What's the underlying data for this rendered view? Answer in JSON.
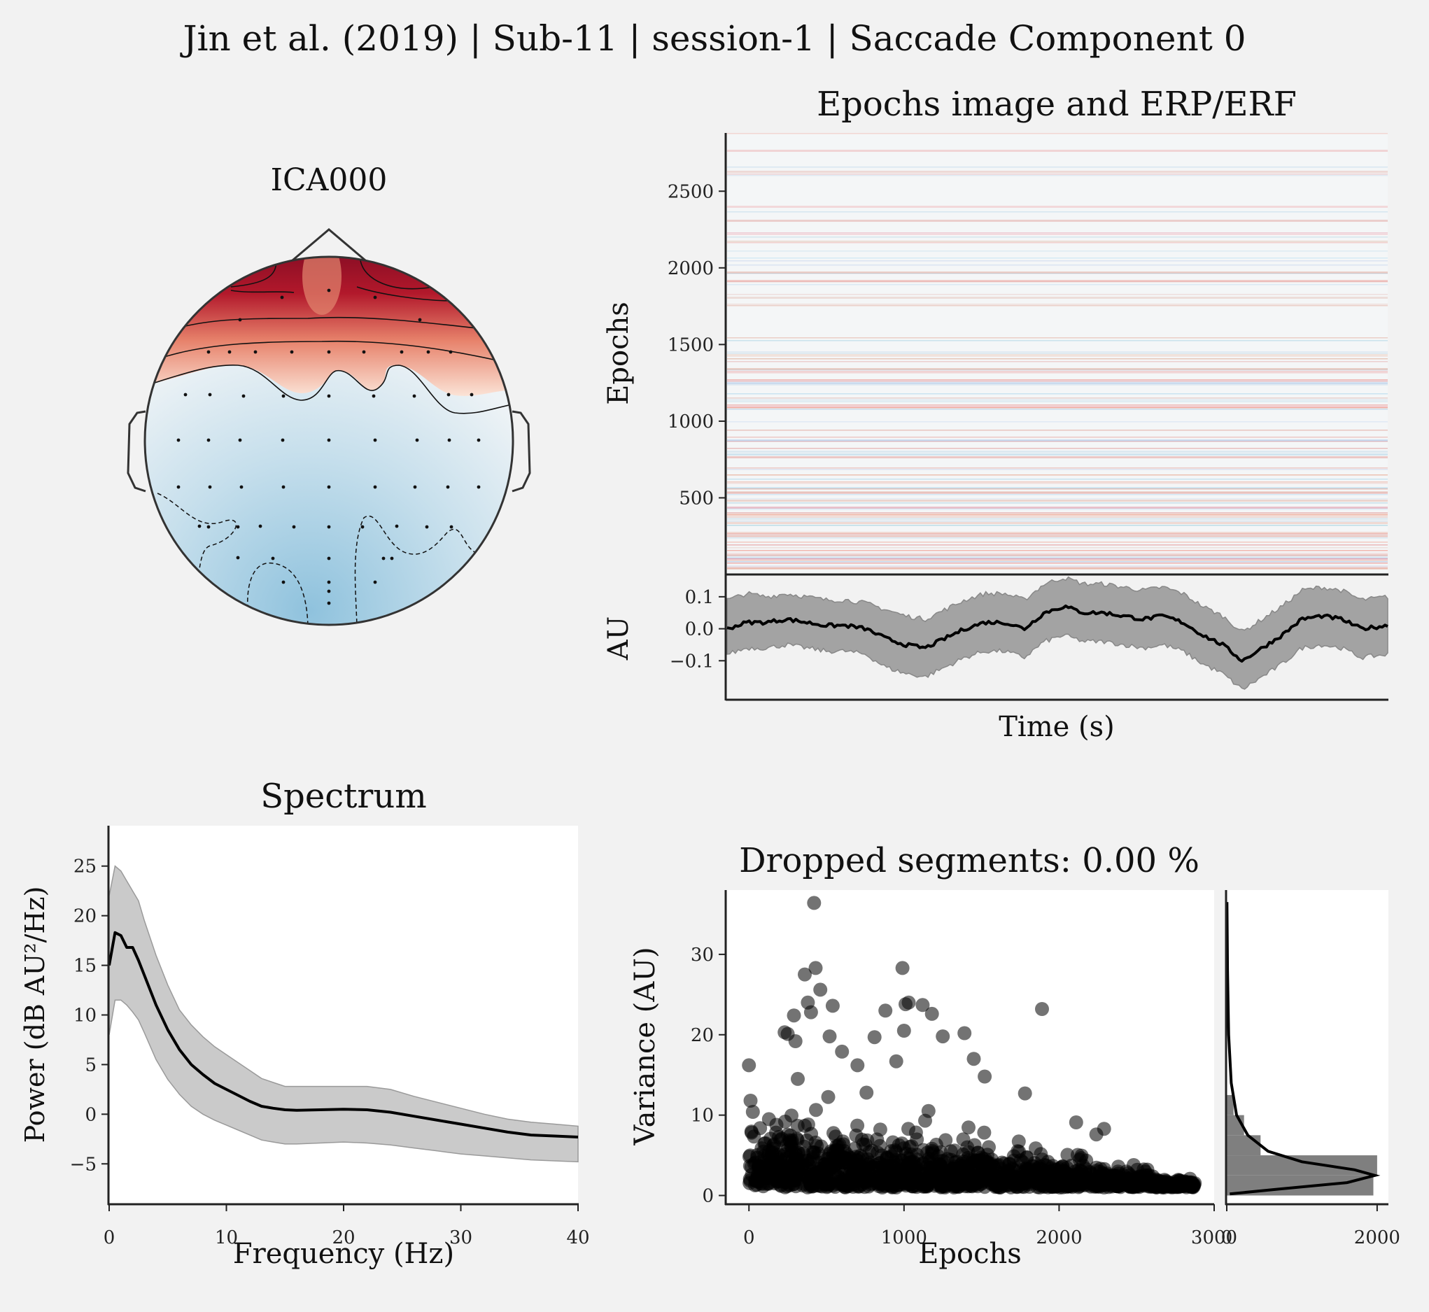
{
  "figure": {
    "suptitle": "Jin et al. (2019) | Sub-11 | session-1 | Saccade Component 0",
    "background": "#f2f2f2"
  },
  "topomap": {
    "title": "ICA000",
    "colormap": "RdBu_r",
    "colors": {
      "positive": "#67001f",
      "neutral": "#f7f7f7",
      "negative": "#4393c3"
    }
  },
  "chart_data": [
    {
      "id": "epochs_image",
      "type": "heatmap",
      "title": "Epochs image and ERP/ERF",
      "ylabel": "Epochs",
      "yticks": [
        500,
        1000,
        1500,
        2000,
        2500
      ],
      "ylim": [
        0,
        2880
      ],
      "colormap": "RdBu_r"
    },
    {
      "id": "erp",
      "type": "area",
      "xlabel": "Time (s)",
      "ylabel": "AU",
      "yticks": [
        0.1,
        0.0,
        -0.1
      ],
      "ytick_labels": [
        "0.1",
        "0.0",
        "−0.1"
      ],
      "ylim": [
        -0.2,
        0.15
      ],
      "xlim": [
        0,
        1
      ],
      "series": [
        {
          "x": [
            0.0,
            0.03,
            0.06,
            0.09,
            0.12,
            0.15,
            0.18,
            0.21,
            0.24,
            0.27,
            0.3,
            0.33,
            0.36,
            0.39,
            0.42,
            0.45,
            0.48,
            0.51,
            0.54,
            0.57,
            0.6,
            0.63,
            0.66,
            0.69,
            0.72,
            0.75,
            0.78,
            0.81,
            0.84,
            0.87,
            0.9,
            0.93,
            0.96,
            1.0
          ],
          "mean": [
            0.0,
            0.02,
            0.02,
            0.03,
            0.02,
            0.01,
            0.01,
            0.0,
            -0.03,
            -0.05,
            -0.06,
            -0.03,
            0.0,
            0.02,
            0.02,
            0.0,
            0.05,
            0.07,
            0.05,
            0.05,
            0.04,
            0.03,
            0.04,
            0.02,
            -0.02,
            -0.05,
            -0.1,
            -0.06,
            -0.02,
            0.03,
            0.04,
            0.03,
            0.0,
            0.01
          ],
          "lower": [
            -0.08,
            -0.06,
            -0.06,
            -0.05,
            -0.06,
            -0.07,
            -0.07,
            -0.08,
            -0.12,
            -0.14,
            -0.15,
            -0.12,
            -0.09,
            -0.07,
            -0.07,
            -0.09,
            -0.04,
            -0.02,
            -0.04,
            -0.04,
            -0.05,
            -0.06,
            -0.05,
            -0.07,
            -0.11,
            -0.14,
            -0.19,
            -0.15,
            -0.11,
            -0.06,
            -0.05,
            -0.06,
            -0.09,
            -0.08
          ],
          "upper": [
            0.09,
            0.11,
            0.1,
            0.11,
            0.1,
            0.09,
            0.09,
            0.08,
            0.06,
            0.04,
            0.03,
            0.06,
            0.09,
            0.11,
            0.11,
            0.09,
            0.14,
            0.16,
            0.14,
            0.14,
            0.13,
            0.12,
            0.13,
            0.11,
            0.07,
            0.04,
            -0.01,
            0.03,
            0.07,
            0.12,
            0.13,
            0.12,
            0.09,
            0.1
          ]
        }
      ]
    },
    {
      "id": "spectrum",
      "type": "line",
      "title": "Spectrum",
      "xlabel": "Frequency (Hz)",
      "ylabel": "Power (dB AU²/Hz)",
      "xlim": [
        0,
        40
      ],
      "ylim": [
        -9,
        29
      ],
      "xticks": [
        0,
        10,
        20,
        30,
        40
      ],
      "yticks": [
        -5,
        0,
        5,
        10,
        15,
        20,
        25
      ],
      "ytick_labels": [
        "−5",
        "0",
        "5",
        "10",
        "15",
        "20",
        "25"
      ],
      "series": [
        {
          "x": [
            0,
            0.5,
            1,
            1.5,
            2,
            2.5,
            3,
            4,
            5,
            6,
            7,
            8,
            9,
            10,
            11,
            12,
            13,
            14,
            15,
            16,
            18,
            20,
            22,
            24,
            26,
            28,
            30,
            32,
            34,
            36,
            38,
            40
          ],
          "mean": [
            15.0,
            18.3,
            18.0,
            16.8,
            16.8,
            15.5,
            14.0,
            11.0,
            8.5,
            6.5,
            5.0,
            4.0,
            3.1,
            2.5,
            1.9,
            1.3,
            0.8,
            0.6,
            0.45,
            0.4,
            0.45,
            0.5,
            0.45,
            0.2,
            -0.2,
            -0.6,
            -1.0,
            -1.4,
            -1.8,
            -2.1,
            -2.2,
            -2.3
          ],
          "lower": [
            8.0,
            11.5,
            11.5,
            11.0,
            10.3,
            9.5,
            8.2,
            5.5,
            3.5,
            2.0,
            0.8,
            0.0,
            -0.6,
            -1.1,
            -1.6,
            -2.1,
            -2.6,
            -2.8,
            -3.0,
            -3.0,
            -2.9,
            -2.8,
            -2.9,
            -3.1,
            -3.4,
            -3.7,
            -4.0,
            -4.2,
            -4.4,
            -4.6,
            -4.7,
            -4.8
          ],
          "upper": [
            22.0,
            25.0,
            24.5,
            23.5,
            22.5,
            21.5,
            19.5,
            16.0,
            13.0,
            10.5,
            9.0,
            7.8,
            6.8,
            6.0,
            5.2,
            4.4,
            3.6,
            3.2,
            2.8,
            2.8,
            2.8,
            2.8,
            2.8,
            2.5,
            1.8,
            1.2,
            0.6,
            0.0,
            -0.5,
            -0.8,
            -1.0,
            -1.2
          ]
        }
      ]
    },
    {
      "id": "dropped_variance",
      "type": "scatter",
      "title": "Dropped segments: 0.00 %",
      "xlabel": "Epochs",
      "ylabel": "Variance (AU)",
      "xlim": [
        -150,
        3000
      ],
      "ylim": [
        -1,
        38
      ],
      "xticks": [
        0,
        1000,
        2000,
        3000
      ],
      "xtick_labels": [
        "0",
        "1000",
        "2000",
        "3000"
      ],
      "yticks": [
        0,
        10,
        20,
        30
      ],
      "outliers": [
        {
          "x": 0,
          "y": 16.2
        },
        {
          "x": 10,
          "y": 11.8
        },
        {
          "x": 25,
          "y": 10.4
        },
        {
          "x": 230,
          "y": 20.3
        },
        {
          "x": 250,
          "y": 20.1
        },
        {
          "x": 290,
          "y": 22.4
        },
        {
          "x": 300,
          "y": 19.2
        },
        {
          "x": 315,
          "y": 14.5
        },
        {
          "x": 360,
          "y": 27.5
        },
        {
          "x": 380,
          "y": 24.0
        },
        {
          "x": 400,
          "y": 22.8
        },
        {
          "x": 420,
          "y": 36.4
        },
        {
          "x": 430,
          "y": 28.3
        },
        {
          "x": 460,
          "y": 25.6
        },
        {
          "x": 540,
          "y": 23.6
        },
        {
          "x": 520,
          "y": 19.8
        },
        {
          "x": 600,
          "y": 17.9
        },
        {
          "x": 700,
          "y": 16.2
        },
        {
          "x": 810,
          "y": 19.7
        },
        {
          "x": 880,
          "y": 23.0
        },
        {
          "x": 950,
          "y": 16.7
        },
        {
          "x": 990,
          "y": 28.3
        },
        {
          "x": 1010,
          "y": 23.8
        },
        {
          "x": 1030,
          "y": 24.0
        },
        {
          "x": 1000,
          "y": 20.5
        },
        {
          "x": 1120,
          "y": 23.7
        },
        {
          "x": 1180,
          "y": 22.6
        },
        {
          "x": 1250,
          "y": 19.8
        },
        {
          "x": 1390,
          "y": 20.2
        },
        {
          "x": 1450,
          "y": 17.0
        },
        {
          "x": 1520,
          "y": 14.8
        },
        {
          "x": 1780,
          "y": 12.7
        },
        {
          "x": 1890,
          "y": 23.2
        },
        {
          "x": 2110,
          "y": 9.1
        },
        {
          "x": 2240,
          "y": 7.6
        },
        {
          "x": 2290,
          "y": 8.3
        },
        {
          "x": 2490,
          "y": 2.1
        },
        {
          "x": 2690,
          "y": 1.8
        },
        {
          "x": 2870,
          "y": 1.2
        }
      ]
    },
    {
      "id": "variance_hist",
      "type": "bar",
      "xticks": [
        0,
        2000
      ],
      "xtick_labels": [
        "0",
        "2000"
      ],
      "xlim": [
        0,
        2150
      ],
      "bins": [
        {
          "y0": 0,
          "y1": 2.5,
          "count": 1950
        },
        {
          "y0": 2.5,
          "y1": 5,
          "count": 2000
        },
        {
          "y0": 5,
          "y1": 7.5,
          "count": 450
        },
        {
          "y0": 7.5,
          "y1": 10,
          "count": 230
        },
        {
          "y0": 10,
          "y1": 12.5,
          "count": 90
        }
      ],
      "kde": [
        {
          "y": 0.2,
          "x": 40
        },
        {
          "y": 0.8,
          "x": 700
        },
        {
          "y": 1.6,
          "x": 1600
        },
        {
          "y": 2.5,
          "x": 1970
        },
        {
          "y": 3.2,
          "x": 1700
        },
        {
          "y": 4.2,
          "x": 1000
        },
        {
          "y": 5.5,
          "x": 550
        },
        {
          "y": 7.5,
          "x": 280
        },
        {
          "y": 10,
          "x": 130
        },
        {
          "y": 14,
          "x": 60
        },
        {
          "y": 20,
          "x": 25
        },
        {
          "y": 28,
          "x": 10
        },
        {
          "y": 36.5,
          "x": 3
        }
      ]
    }
  ]
}
